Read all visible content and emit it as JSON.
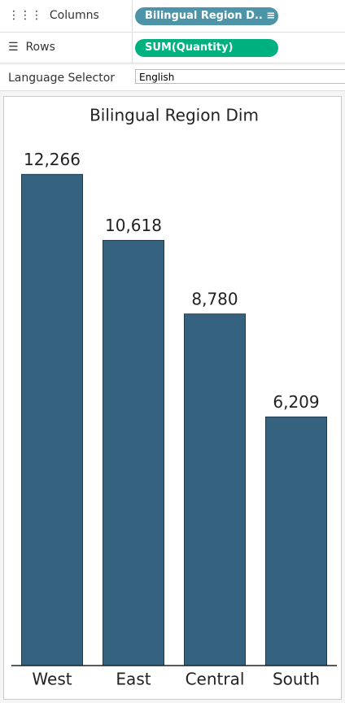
{
  "shelves": {
    "columns": {
      "label": "Columns",
      "pill": "Bilingual Region D.."
    },
    "rows": {
      "label": "Rows",
      "pill": "SUM(Quantity)"
    },
    "parameter": {
      "label": "Language Selector",
      "value": "English"
    }
  },
  "chart_data": {
    "type": "bar",
    "title": "Bilingual Region Dim",
    "categories": [
      "West",
      "East",
      "Central",
      "South"
    ],
    "values": [
      12266,
      10618,
      8780,
      6209
    ],
    "value_labels": [
      "12,266",
      "10,618",
      "8,780",
      "6,209"
    ],
    "color": "#35627f",
    "ylim": [
      0,
      14000
    ]
  }
}
